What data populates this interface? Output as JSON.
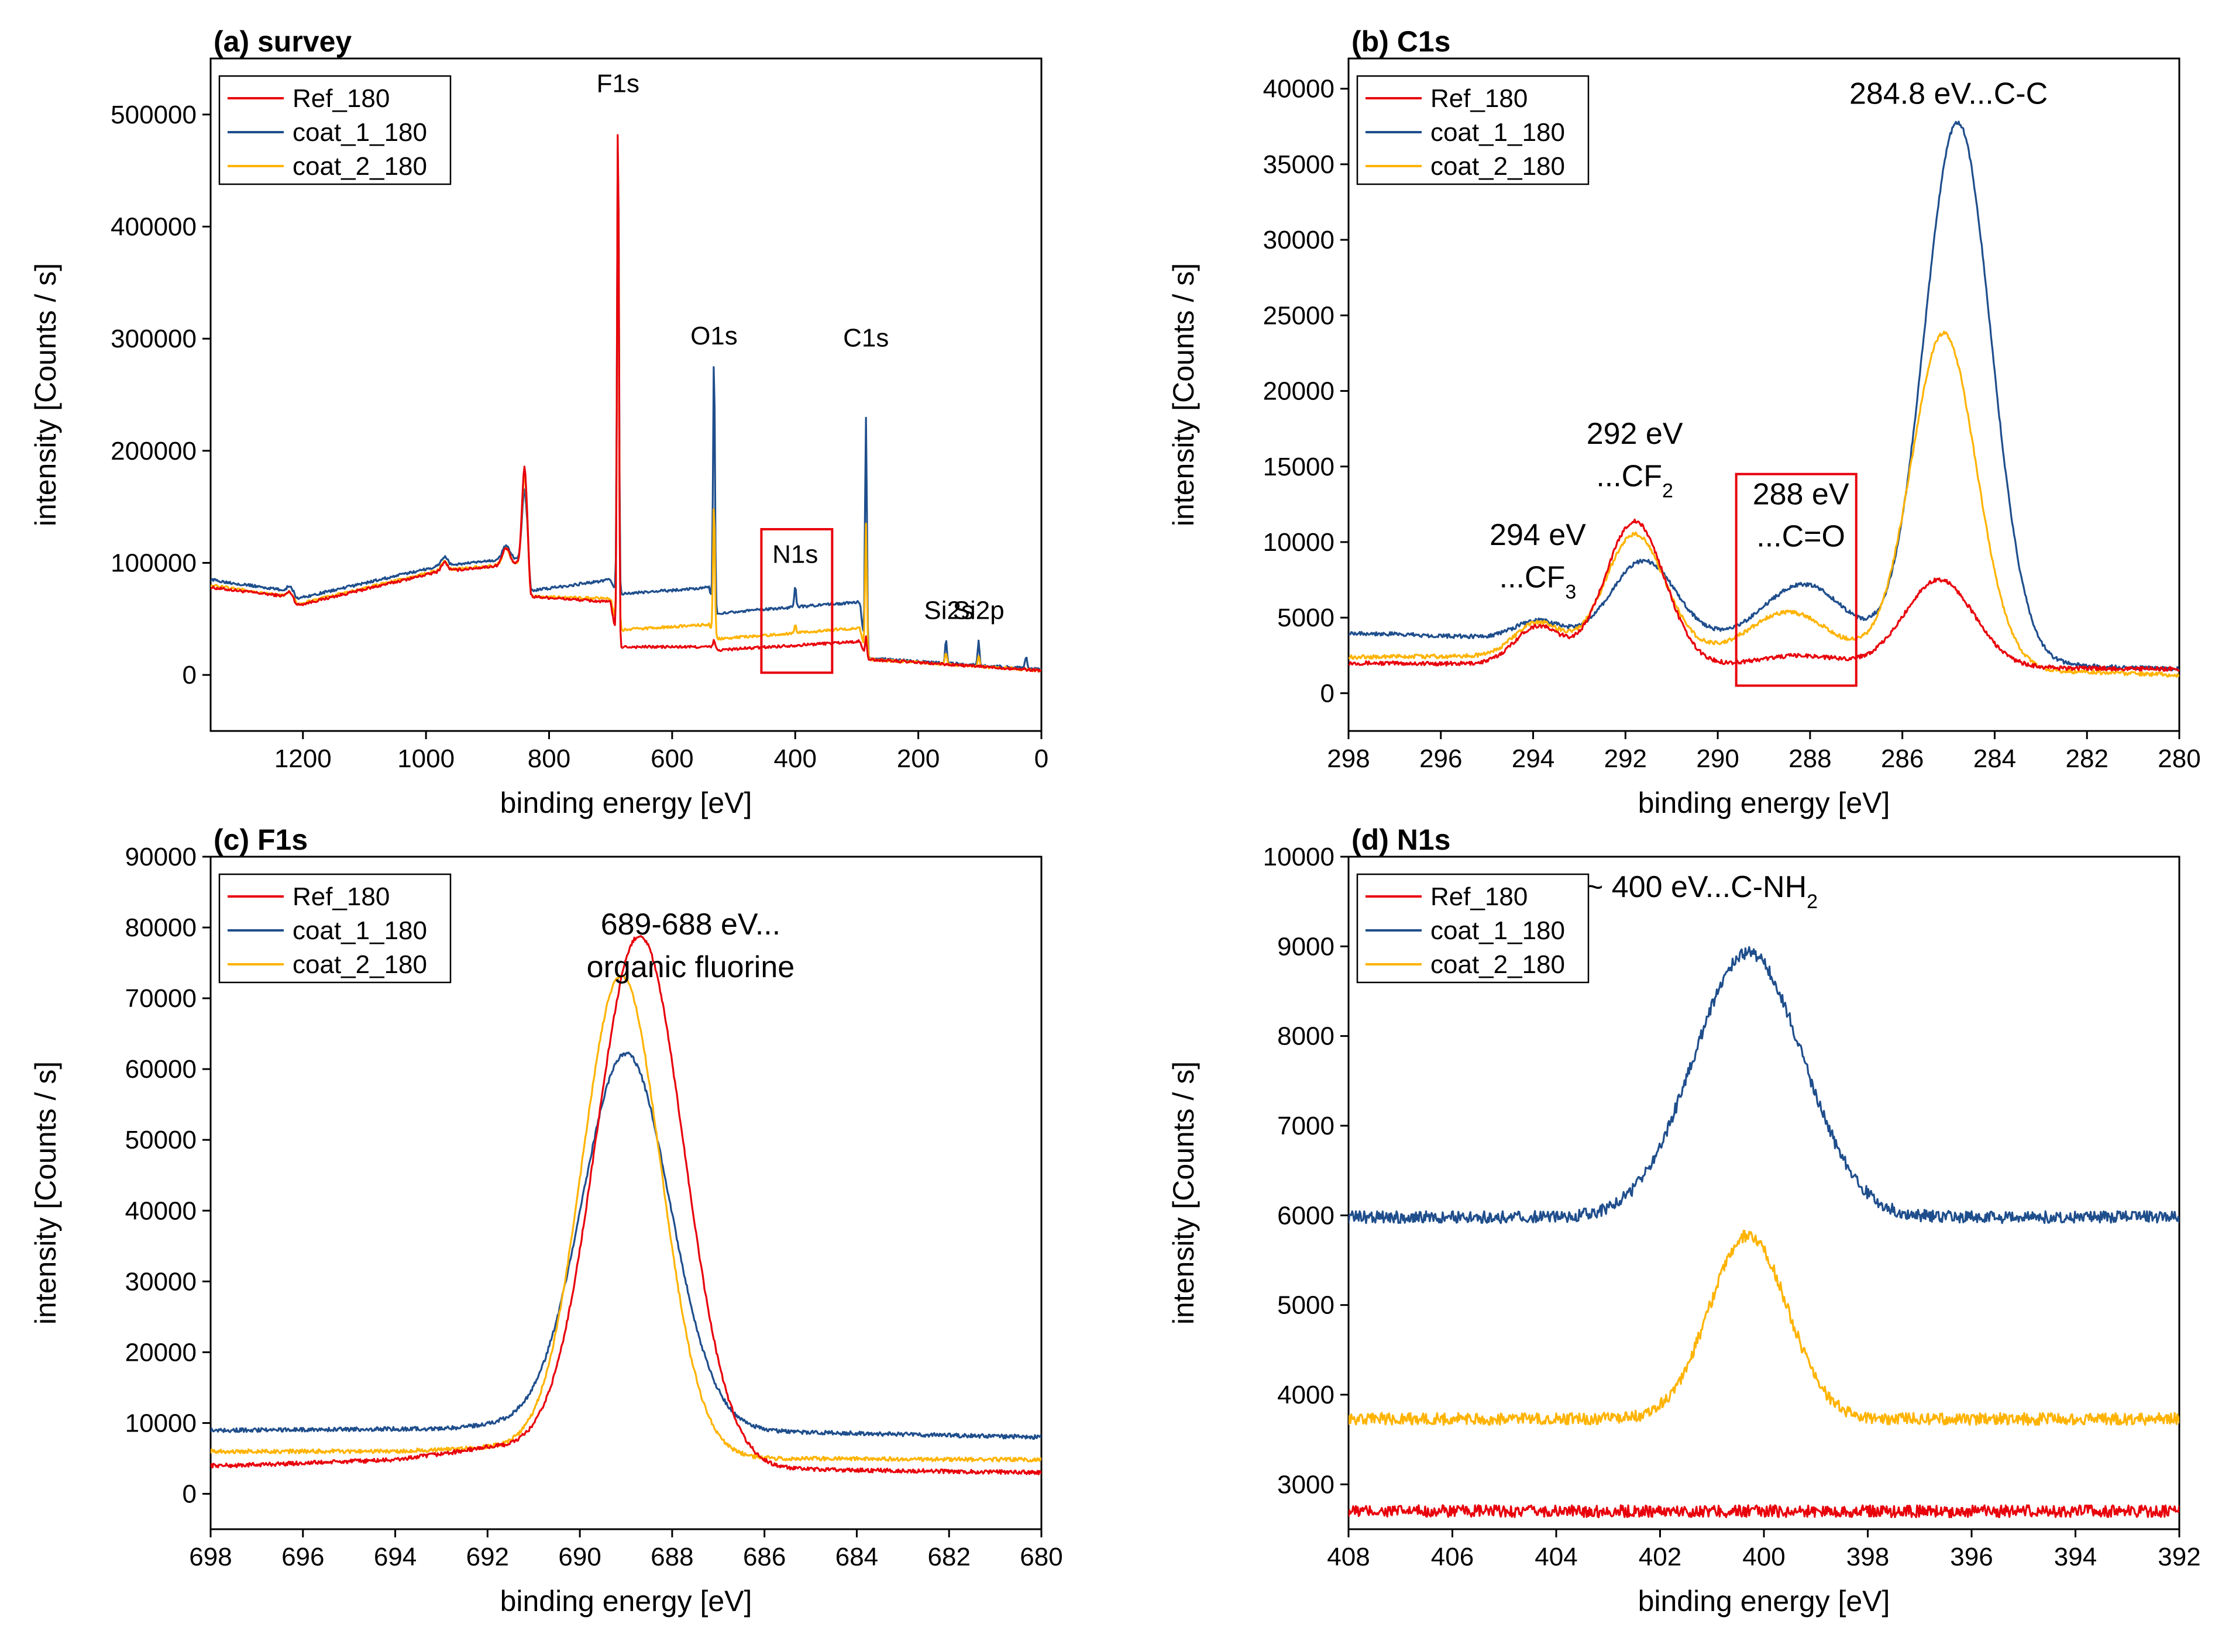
{
  "colors": {
    "Ref_180": "#e8000b",
    "coat_1_180": "#1f4e8c",
    "coat_2_180": "#ffb300",
    "box": "#e8000b"
  },
  "chart_data": [
    {
      "type": "line",
      "title": "(a) survey",
      "xlabel": "binding energy [eV]",
      "ylabel": "intensity [Counts / s]",
      "xlim": [
        1350,
        0
      ],
      "ylim": [
        -50000,
        550000
      ],
      "x_reversed": true,
      "xticks": [
        1200,
        1000,
        800,
        600,
        400,
        200,
        0
      ],
      "yticks": [
        0,
        100000,
        200000,
        300000,
        400000,
        500000
      ],
      "legend": "top-left",
      "legend_entries": [
        "Ref_180",
        "coat_1_180",
        "coat_2_180"
      ],
      "annotations": [
        {
          "text": "F1s",
          "x": 688,
          "y": 520000
        },
        {
          "text": "O1s",
          "x": 532,
          "y": 295000
        },
        {
          "text": "C1s",
          "x": 285,
          "y": 293000
        },
        {
          "text": "N1s",
          "x": 400,
          "y": 100000
        },
        {
          "text": "Si2s",
          "x": 150,
          "y": 50000
        },
        {
          "text": "Si2p",
          "x": 102,
          "y": 50000
        }
      ],
      "highlight_box": {
        "x0": 455,
        "x1": 340,
        "y0": 2000,
        "y1": 130000
      },
      "series": [
        {
          "name": "Ref_180",
          "baseline": [
            [
              1350,
              78000
            ],
            [
              1225,
              70000
            ],
            [
              1210,
              62000
            ],
            [
              980,
              92000
            ],
            [
              835,
              100000
            ],
            [
              830,
              70000
            ],
            [
              700,
              65000
            ],
            [
              688,
              25000
            ],
            [
              540,
              25000
            ],
            [
              530,
              22000
            ],
            [
              295,
              30000
            ],
            [
              285,
              14000
            ],
            [
              0,
              4000
            ]
          ],
          "peaks": [
            [
              1220,
              6000,
              5
            ],
            [
              970,
              8000,
              5
            ],
            [
              870,
              15000,
              6
            ],
            [
              840,
              85000,
              4
            ],
            [
              688,
              480000,
              1.5
            ],
            [
              532,
              8000,
              2
            ],
            [
              285,
              20000,
              1.5
            ]
          ]
        },
        {
          "name": "coat_1_180",
          "baseline": [
            [
              1350,
              85000
            ],
            [
              1225,
              75000
            ],
            [
              1210,
              68000
            ],
            [
              980,
              97000
            ],
            [
              835,
              105000
            ],
            [
              830,
              75000
            ],
            [
              700,
              85000
            ],
            [
              688,
              72000
            ],
            [
              540,
              78000
            ],
            [
              530,
              55000
            ],
            [
              295,
              65000
            ],
            [
              285,
              15000
            ],
            [
              0,
              5000
            ]
          ],
          "peaks": [
            [
              1220,
              6000,
              5
            ],
            [
              970,
              8000,
              5
            ],
            [
              870,
              12000,
              6
            ],
            [
              840,
              60000,
              4
            ],
            [
              688,
              420000,
              1.5
            ],
            [
              532,
              225000,
              1.5
            ],
            [
              400,
              18000,
              1.5
            ],
            [
              285,
              215000,
              1.5
            ],
            [
              155,
              22000,
              1.5
            ],
            [
              102,
              22000,
              1.5
            ],
            [
              25,
              10000,
              2
            ]
          ]
        },
        {
          "name": "coat_2_180",
          "baseline": [
            [
              1350,
              80000
            ],
            [
              1225,
              70000
            ],
            [
              1210,
              63000
            ],
            [
              980,
              93000
            ],
            [
              835,
              100000
            ],
            [
              830,
              70000
            ],
            [
              700,
              68000
            ],
            [
              688,
              40000
            ],
            [
              540,
              45000
            ],
            [
              530,
              32000
            ],
            [
              295,
              42000
            ],
            [
              285,
              14000
            ],
            [
              0,
              4000
            ]
          ],
          "peaks": [
            [
              1220,
              6000,
              5
            ],
            [
              970,
              8000,
              5
            ],
            [
              870,
              14000,
              6
            ],
            [
              840,
              80000,
              4
            ],
            [
              688,
              440000,
              1.5
            ],
            [
              532,
              120000,
              1.5
            ],
            [
              400,
              8000,
              1.5
            ],
            [
              285,
              120000,
              1.5
            ],
            [
              155,
              10000,
              1.5
            ],
            [
              102,
              10000,
              1.5
            ]
          ]
        }
      ]
    },
    {
      "type": "line",
      "title": "(b) C1s",
      "xlabel": "binding energy [eV]",
      "ylabel": "intensity [Counts / s]",
      "xlim": [
        298,
        280
      ],
      "ylim": [
        -2500,
        42000
      ],
      "x_reversed": true,
      "xticks": [
        298,
        296,
        294,
        292,
        290,
        288,
        286,
        284,
        282,
        280
      ],
      "yticks": [
        0,
        5000,
        10000,
        15000,
        20000,
        25000,
        30000,
        35000,
        40000
      ],
      "legend": "top-left",
      "legend_entries": [
        "Ref_180",
        "coat_1_180",
        "coat_2_180"
      ],
      "annotations": [
        {
          "text": "284.8 eV...C-C",
          "x": 285.0,
          "y": 39000
        },
        {
          "text": "292 eV",
          "x": 291.8,
          "y": 16500
        },
        {
          "text": "...CF",
          "sub": "2",
          "x": 291.8,
          "y": 13700
        },
        {
          "text": "294 eV",
          "x": 293.9,
          "y": 9800
        },
        {
          "text": "...CF",
          "sub": "3",
          "x": 293.9,
          "y": 7000
        },
        {
          "text": "288 eV",
          "x": 288.2,
          "y": 12500
        },
        {
          "text": "...C=O",
          "x": 288.2,
          "y": 9700
        }
      ],
      "highlight_box": {
        "x0": 289.6,
        "x1": 287.0,
        "y0": 500,
        "y1": 14500
      },
      "series": [
        {
          "name": "Ref_180",
          "baseline": [
            [
              298,
              2000
            ],
            [
              280,
              1600
            ]
          ],
          "peaks": [
            [
              293.9,
              2500,
              0.5
            ],
            [
              291.8,
              9500,
              0.65
            ],
            [
              288.2,
              700,
              0.9
            ],
            [
              285.2,
              5800,
              0.75
            ]
          ]
        },
        {
          "name": "coat_1_180",
          "baseline": [
            [
              298,
              4000
            ],
            [
              294,
              3600
            ],
            [
              290,
              3400
            ],
            [
              283,
              1900
            ],
            [
              280,
              1600
            ]
          ],
          "peaks": [
            [
              293.9,
              1200,
              0.5
            ],
            [
              291.6,
              5300,
              0.7
            ],
            [
              288.1,
              4200,
              0.9
            ],
            [
              284.8,
              35500,
              0.72
            ]
          ]
        },
        {
          "name": "coat_2_180",
          "baseline": [
            [
              298,
              2400
            ],
            [
              292,
              2500
            ],
            [
              289,
              3000
            ],
            [
              283,
              1500
            ],
            [
              280,
              1200
            ]
          ],
          "peaks": [
            [
              293.9,
              2200,
              0.5
            ],
            [
              291.8,
              8000,
              0.65
            ],
            [
              288.4,
              2500,
              0.8
            ],
            [
              285.1,
              21800,
              0.7
            ]
          ]
        }
      ]
    },
    {
      "type": "line",
      "title": "(c) F1s",
      "xlabel": "binding energy [eV]",
      "ylabel": "intensity [Counts / s]",
      "xlim": [
        698,
        680
      ],
      "ylim": [
        -5000,
        90000
      ],
      "x_reversed": true,
      "xticks": [
        698,
        696,
        694,
        692,
        690,
        688,
        686,
        684,
        682,
        680
      ],
      "yticks": [
        0,
        10000,
        20000,
        30000,
        40000,
        50000,
        60000,
        70000,
        80000,
        90000
      ],
      "legend": "top-left",
      "legend_entries": [
        "Ref_180",
        "coat_1_180",
        "coat_2_180"
      ],
      "annotations": [
        {
          "text": "689-688 eV...",
          "x": 687.6,
          "y": 79000
        },
        {
          "text": "organic fluorine",
          "x": 687.6,
          "y": 73000
        }
      ],
      "series": [
        {
          "name": "Ref_180",
          "baseline": [
            [
              697.5,
              4000
            ],
            [
              694,
              4800
            ],
            [
              692,
              6500
            ],
            [
              686,
              3500
            ],
            [
              680,
              3000
            ]
          ],
          "peaks": [
            [
              688.7,
              74000,
              0.95
            ]
          ]
        },
        {
          "name": "coat_1_180",
          "baseline": [
            [
              697.5,
              9000
            ],
            [
              693,
              9200
            ],
            [
              692,
              9600
            ],
            [
              686,
              8800
            ],
            [
              680,
              8000
            ]
          ],
          "peaks": [
            [
              689.0,
              53000,
              0.95
            ]
          ]
        },
        {
          "name": "coat_2_180",
          "baseline": [
            [
              697.5,
              6000
            ],
            [
              694,
              6000
            ],
            [
              692,
              6500
            ],
            [
              686,
              5000
            ],
            [
              680,
              4800
            ]
          ],
          "peaks": [
            [
              689.1,
              67500,
              0.85
            ]
          ]
        }
      ]
    },
    {
      "type": "line",
      "title": "(d) N1s",
      "xlabel": "binding energy [eV]",
      "ylabel": "intensity [Counts / s]",
      "xlim": [
        408,
        392
      ],
      "ylim": [
        2500,
        10000
      ],
      "x_reversed": true,
      "xticks": [
        408,
        406,
        404,
        402,
        400,
        398,
        396,
        394,
        392
      ],
      "yticks": [
        3000,
        4000,
        5000,
        6000,
        7000,
        8000,
        9000,
        10000
      ],
      "legend": "top-left",
      "legend_entries": [
        "Ref_180",
        "coat_1_180",
        "coat_2_180"
      ],
      "annotations": [
        {
          "text": "~ 400 eV...C-NH",
          "sub": "2",
          "x": 401.2,
          "y": 9550
        }
      ],
      "series": [
        {
          "name": "Ref_180",
          "baseline": [
            [
              408,
              2700
            ],
            [
              392,
              2700
            ]
          ],
          "peaks": []
        },
        {
          "name": "coat_1_180",
          "baseline": [
            [
              408,
              5980
            ],
            [
              392,
              5980
            ]
          ],
          "peaks": [
            [
              400.3,
              2950,
              1.05
            ]
          ]
        },
        {
          "name": "coat_2_180",
          "baseline": [
            [
              408,
              3730
            ],
            [
              392,
              3730
            ]
          ],
          "peaks": [
            [
              400.3,
              2050,
              0.75
            ]
          ]
        }
      ]
    }
  ]
}
